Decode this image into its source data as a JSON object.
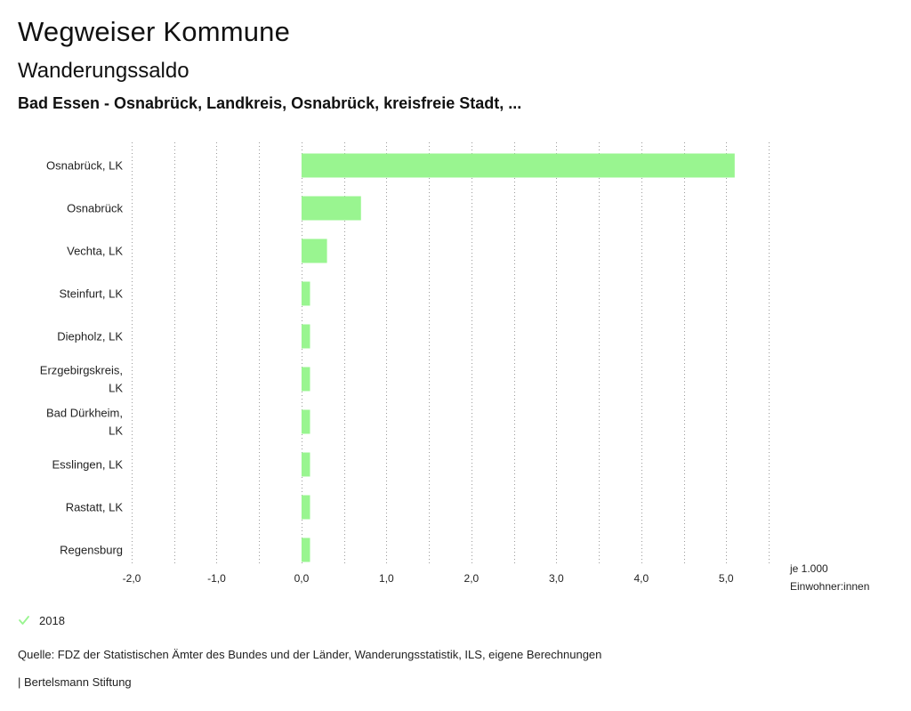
{
  "header": {
    "title": "Wegweiser Kommune",
    "subtitle": "Wanderungssaldo",
    "region": "Bad Essen - Osnabrück, Landkreis, Osnabrück, kreisfreie Stadt, ..."
  },
  "chart_data": {
    "type": "bar",
    "orientation": "horizontal",
    "categories": [
      [
        "Osnabrück, LK"
      ],
      [
        "Osnabrück"
      ],
      [
        "Vechta, LK"
      ],
      [
        "Steinfurt, LK"
      ],
      [
        "Diepholz, LK"
      ],
      [
        "Erzgebirgskreis,",
        "LK"
      ],
      [
        "Bad Dürkheim,",
        "LK"
      ],
      [
        "Esslingen, LK"
      ],
      [
        "Rastatt, LK"
      ],
      [
        "Regensburg"
      ]
    ],
    "series": [
      {
        "name": "2018",
        "color": "#99f590",
        "values": [
          5.1,
          0.7,
          0.3,
          0.1,
          0.1,
          0.1,
          0.1,
          0.1,
          0.1,
          0.1
        ]
      }
    ],
    "xlim": [
      -2.0,
      5.5
    ],
    "xticks": [
      -2.0,
      -1.0,
      0.0,
      1.0,
      2.0,
      3.0,
      4.0,
      5.0
    ],
    "xtick_labels": [
      "-2,0",
      "-1,0",
      "0,0",
      "1,0",
      "2,0",
      "3,0",
      "4,0",
      "5,0"
    ],
    "gridlines": [
      -2.0,
      -1.5,
      -1.0,
      -0.5,
      0.0,
      0.5,
      1.0,
      1.5,
      2.0,
      2.5,
      3.0,
      3.5,
      4.0,
      4.5,
      5.0,
      5.5
    ],
    "unit_label": [
      "je 1.000",
      "Einwohner:innen"
    ],
    "grid": true
  },
  "legend": {
    "items": [
      {
        "label": "2018",
        "color": "#99f590",
        "icon": "check-icon"
      }
    ]
  },
  "footer": {
    "source": "Quelle: FDZ der Statistischen Ämter des Bundes und der Länder, Wanderungsstatistik, ILS, eigene Berechnungen",
    "publisher": "| Bertelsmann Stiftung"
  }
}
